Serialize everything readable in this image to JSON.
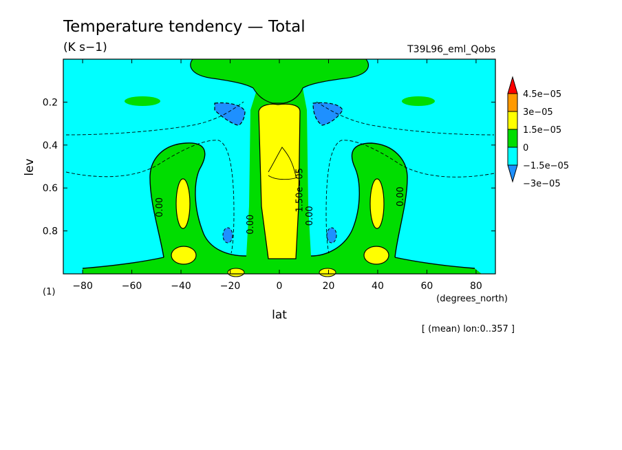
{
  "chart_data": {
    "type": "heatmap",
    "title": "Temperature tendency — Total",
    "units": "(K s−1)",
    "run_label": "T39L96_eml_Qobs",
    "xlabel": "lat",
    "xunits": "(degrees_north)",
    "ylabel": "lev",
    "yunits": "(1)",
    "averaging_note": "[ (mean) lon:0..357 ]",
    "xlim": [
      -87.86,
      87.86
    ],
    "ylim": [
      0.0,
      1.0
    ],
    "y_inverted": true,
    "x_ticks": [
      -80,
      -60,
      -40,
      -20,
      0,
      20,
      40,
      60,
      80
    ],
    "x_tick_labels": [
      "−80",
      "−60",
      "−40",
      "−20",
      "0",
      "20",
      "40",
      "60",
      "80"
    ],
    "y_ticks": [
      0.2,
      0.4,
      0.6,
      0.8
    ],
    "y_tick_labels": [
      "0.2",
      "0.4",
      "0.6",
      "0.8"
    ],
    "contour_labels": [
      {
        "text": "0.00",
        "lat": -49,
        "lev": 0.69
      },
      {
        "text": "0.00",
        "lat": -12,
        "lev": 0.77
      },
      {
        "text": "1.50e−05",
        "lat": 8,
        "lev": 0.61
      },
      {
        "text": "0.00",
        "lat": 12,
        "lev": 0.73
      },
      {
        "text": "0.00",
        "lat": 49,
        "lev": 0.64
      }
    ],
    "colorbar": {
      "levels": [
        "4.5e−05",
        "3e−05",
        "1.5e−05",
        "0",
        "−1.5e−05",
        "−3e−05"
      ],
      "colors": [
        "#ff0000",
        "#ff9900",
        "#ffff00",
        "#00dd00",
        "#00ffff",
        "#1e90ff"
      ]
    },
    "colors": {
      "neg2": "#1e90ff",
      "neg1": "#00ffff",
      "pos0": "#00dd00",
      "pos1": "#ffff00",
      "pos2": "#ff9900",
      "pos3": "#ff0000"
    }
  }
}
